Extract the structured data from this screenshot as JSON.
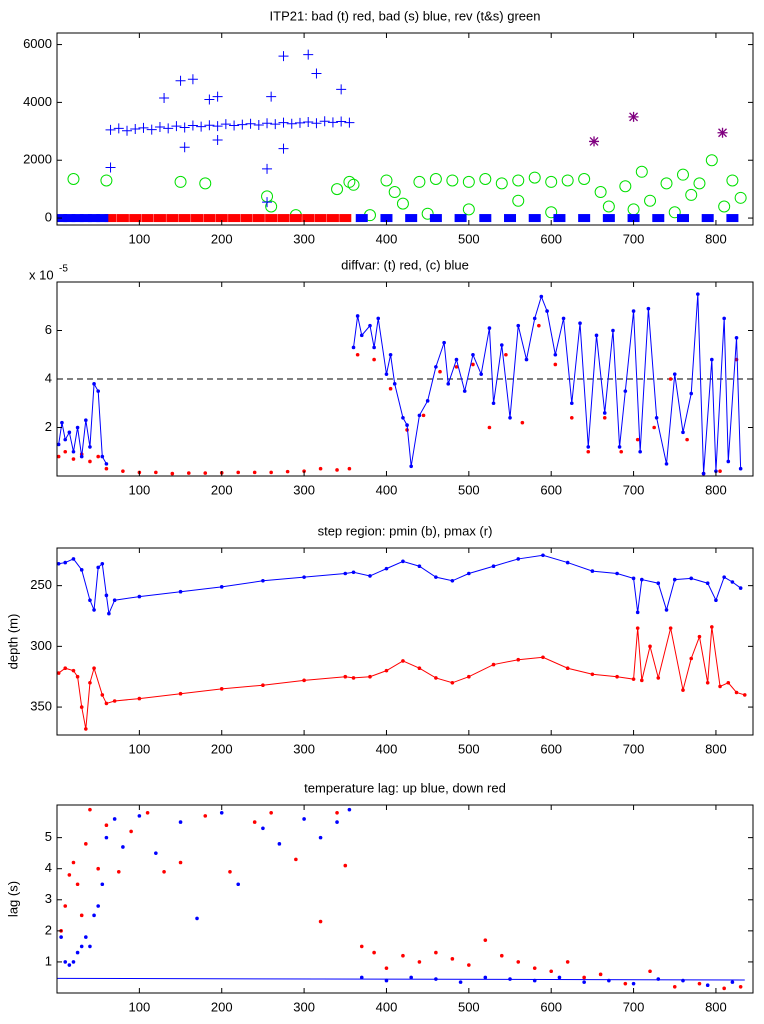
{
  "chart_data": [
    {
      "type": "scatter",
      "title": "ITP21: bad (t) red, bad (s) blue, rev (t&s) green",
      "xlim": [
        0,
        845
      ],
      "ylim": [
        -240,
        6400
      ],
      "xticks": [
        100,
        200,
        300,
        400,
        500,
        600,
        700,
        800
      ],
      "yticks": [
        0,
        2000,
        4000,
        6000
      ],
      "series": [
        {
          "color": "#00e000",
          "marker": "circle",
          "line": false,
          "x": [
            20,
            60,
            150,
            180,
            255,
            260,
            290,
            340,
            355,
            360,
            380,
            400,
            410,
            420,
            440,
            460,
            480,
            500,
            520,
            540,
            560,
            580,
            600,
            620,
            640,
            660,
            670,
            690,
            700,
            710,
            720,
            740,
            750,
            760,
            770,
            780,
            795,
            810,
            820,
            830,
            500,
            560,
            600,
            450
          ],
          "values": [
            1350,
            1300,
            1250,
            1200,
            750,
            400,
            100,
            1000,
            1250,
            1150,
            100,
            1300,
            900,
            500,
            1250,
            1350,
            1300,
            1250,
            1350,
            1200,
            1300,
            1400,
            1250,
            1300,
            1350,
            900,
            400,
            1100,
            300,
            1600,
            600,
            1200,
            200,
            1500,
            800,
            1200,
            2000,
            400,
            1300,
            700,
            300,
            600,
            200,
            150
          ]
        },
        {
          "color": "#0000ff",
          "marker": "plus",
          "line": false,
          "x": [
            65,
            75,
            85,
            95,
            105,
            115,
            125,
            135,
            145,
            155,
            165,
            175,
            185,
            195,
            205,
            215,
            225,
            235,
            245,
            255,
            265,
            275,
            285,
            295,
            305,
            315,
            325,
            335,
            345,
            355,
            130,
            150,
            165,
            185,
            195,
            260,
            275,
            305,
            315,
            345,
            155,
            195,
            275,
            255,
            65,
            255
          ],
          "values": [
            3050,
            3100,
            3020,
            3080,
            3120,
            3060,
            3150,
            3100,
            3180,
            3130,
            3200,
            3160,
            3210,
            3180,
            3250,
            3200,
            3230,
            3260,
            3220,
            3280,
            3250,
            3300,
            3260,
            3290,
            3320,
            3280,
            3350,
            3310,
            3340,
            3300,
            4150,
            4750,
            4800,
            4100,
            4200,
            4200,
            5600,
            5650,
            5000,
            4450,
            2450,
            2700,
            2400,
            1700,
            1750,
            550
          ]
        },
        {
          "color": "#ff0000",
          "marker": "square",
          "line": false,
          "x": [
            65,
            80,
            95,
            110,
            125,
            140,
            155,
            170,
            185,
            200,
            215,
            230,
            245,
            260,
            275,
            290,
            305,
            320,
            335,
            350
          ],
          "values": [
            0,
            0,
            0,
            0,
            0,
            0,
            0,
            0,
            0,
            0,
            0,
            0,
            0,
            0,
            0,
            0,
            0,
            0,
            0,
            0
          ]
        },
        {
          "color": "#0000ff",
          "marker": "square",
          "line": false,
          "x": [
            5,
            15,
            25,
            35,
            45,
            55,
            370,
            400,
            430,
            460,
            490,
            520,
            550,
            580,
            610,
            640,
            670,
            700,
            730,
            760,
            790,
            820
          ],
          "values": [
            0,
            0,
            0,
            0,
            0,
            0,
            0,
            0,
            0,
            0,
            0,
            0,
            0,
            0,
            0,
            0,
            0,
            0,
            0,
            0,
            0,
            0
          ]
        },
        {
          "color": "#800080",
          "marker": "star",
          "line": false,
          "x": [
            652,
            700,
            808
          ],
          "values": [
            2650,
            3500,
            2950
          ]
        }
      ]
    },
    {
      "type": "line",
      "title": "diffvar: (t) red, (c) blue",
      "y_multiplier": {
        "base": "x 10",
        "exponent": "-5"
      },
      "xlim": [
        0,
        845
      ],
      "ylim": [
        0,
        8
      ],
      "xticks": [
        100,
        200,
        300,
        400,
        500,
        600,
        700,
        800
      ],
      "yticks": [
        2,
        4,
        6
      ],
      "hline": 4,
      "series": [
        {
          "color": "#ff0000",
          "marker": "dot",
          "line": false,
          "x": [
            2,
            10,
            20,
            30,
            40,
            50,
            60,
            80,
            100,
            120,
            140,
            160,
            180,
            200,
            220,
            240,
            260,
            280,
            300,
            320,
            340,
            355,
            365,
            385,
            405,
            425,
            445,
            465,
            485,
            505,
            525,
            545,
            565,
            585,
            605,
            625,
            645,
            665,
            685,
            705,
            725,
            745,
            765,
            785,
            805,
            825
          ],
          "values": [
            0.8,
            1.0,
            0.7,
            0.9,
            0.6,
            0.8,
            0.3,
            0.2,
            0.15,
            0.15,
            0.1,
            0.12,
            0.12,
            0.13,
            0.15,
            0.15,
            0.15,
            0.18,
            0.2,
            0.3,
            0.25,
            0.3,
            5.0,
            4.8,
            3.6,
            1.9,
            2.5,
            4.3,
            4.5,
            4.6,
            2.0,
            5.0,
            2.2,
            6.2,
            4.6,
            2.4,
            1.0,
            2.4,
            1.0,
            1.5,
            2.0,
            4.0,
            1.5,
            0.1,
            0.2,
            4.8
          ]
        },
        {
          "color": "#0000ff",
          "marker": "dot",
          "line": true,
          "x": [
            2,
            6,
            10,
            15,
            20,
            25,
            30,
            35,
            40,
            45,
            50,
            55,
            60,
            200,
            360,
            365,
            370,
            380,
            385,
            390,
            400,
            405,
            410,
            420,
            425,
            430,
            440,
            450,
            460,
            470,
            475,
            485,
            495,
            505,
            515,
            525,
            530,
            540,
            550,
            560,
            570,
            580,
            588,
            595,
            605,
            615,
            625,
            635,
            645,
            655,
            665,
            675,
            683,
            690,
            700,
            708,
            718,
            728,
            740,
            750,
            760,
            770,
            778,
            785,
            795,
            800,
            810,
            815,
            825,
            830
          ],
          "values": [
            1.3,
            2.2,
            1.5,
            1.8,
            1.0,
            2.0,
            0.8,
            2.3,
            1.2,
            3.8,
            3.5,
            0.8,
            0.5,
            null,
            5.3,
            6.6,
            5.8,
            6.2,
            5.3,
            6.5,
            4.2,
            5.0,
            3.8,
            2.4,
            2.1,
            0.4,
            2.5,
            3.1,
            4.5,
            5.5,
            3.8,
            4.8,
            3.5,
            5.0,
            4.2,
            6.1,
            3.0,
            5.4,
            2.4,
            6.2,
            4.8,
            6.5,
            7.4,
            6.8,
            5.0,
            6.5,
            3.0,
            6.3,
            1.2,
            5.8,
            2.6,
            6.0,
            1.2,
            3.5,
            6.8,
            1.0,
            6.9,
            2.4,
            0.5,
            4.2,
            1.8,
            3.4,
            7.5,
            0.1,
            4.8,
            0.2,
            6.5,
            0.6,
            5.7,
            0.3
          ]
        }
      ]
    },
    {
      "type": "line",
      "title": "step region: pmin (b), pmax (r)",
      "ylabel": "depth (m)",
      "y_reversed": true,
      "xlim": [
        0,
        845
      ],
      "ylim": [
        219,
        373
      ],
      "xticks": [
        100,
        200,
        300,
        400,
        500,
        600,
        700,
        800
      ],
      "yticks": [
        250,
        300,
        350
      ],
      "series": [
        {
          "color": "#0000ff",
          "marker": "dot",
          "line": true,
          "x": [
            2,
            10,
            20,
            30,
            40,
            45,
            50,
            55,
            60,
            63,
            70,
            100,
            150,
            200,
            250,
            300,
            350,
            360,
            380,
            400,
            420,
            440,
            460,
            480,
            500,
            530,
            560,
            590,
            620,
            650,
            680,
            700,
            705,
            710,
            730,
            740,
            750,
            770,
            790,
            800,
            810,
            820,
            830
          ],
          "values": [
            232,
            231,
            228,
            237,
            262,
            270,
            235,
            232,
            258,
            273,
            262,
            259,
            255,
            251,
            246,
            243,
            240,
            239,
            242,
            236,
            230,
            234,
            243,
            246,
            240,
            234,
            228,
            225,
            231,
            238,
            240,
            244,
            272,
            245,
            248,
            270,
            245,
            244,
            248,
            262,
            243,
            247,
            252
          ]
        },
        {
          "color": "#ff0000",
          "marker": "dot",
          "line": true,
          "x": [
            2,
            10,
            20,
            25,
            30,
            35,
            40,
            45,
            55,
            60,
            70,
            100,
            150,
            200,
            250,
            300,
            350,
            360,
            380,
            400,
            420,
            440,
            460,
            480,
            500,
            530,
            560,
            590,
            620,
            650,
            680,
            700,
            705,
            710,
            720,
            730,
            745,
            760,
            770,
            780,
            790,
            795,
            805,
            815,
            825,
            835
          ],
          "values": [
            322,
            318,
            320,
            325,
            350,
            368,
            330,
            318,
            340,
            347,
            345,
            343,
            339,
            335,
            332,
            328,
            325,
            326,
            325,
            320,
            312,
            318,
            326,
            330,
            325,
            315,
            311,
            309,
            318,
            323,
            325,
            327,
            285,
            328,
            300,
            326,
            285,
            336,
            310,
            292,
            330,
            284,
            333,
            330,
            338,
            340
          ]
        }
      ]
    },
    {
      "type": "scatter",
      "title": "temperature lag: up blue, down red",
      "ylabel": "lag (s)",
      "xlim": [
        0,
        845
      ],
      "ylim": [
        0,
        6.05
      ],
      "xticks": [
        100,
        200,
        300,
        400,
        500,
        600,
        700,
        800
      ],
      "yticks": [
        1,
        2,
        3,
        4,
        5
      ],
      "series": [
        {
          "color": "#0000ff",
          "marker": "none",
          "line": true,
          "x": [
            0,
            835
          ],
          "values": [
            0.47,
            0.42
          ]
        },
        {
          "color": "#0000ff",
          "marker": "dot",
          "line": false,
          "x": [
            5,
            10,
            15,
            20,
            25,
            30,
            35,
            40,
            45,
            50,
            55,
            60,
            70,
            80,
            100,
            120,
            150,
            170,
            200,
            220,
            250,
            270,
            300,
            320,
            340,
            355,
            370,
            400,
            430,
            460,
            490,
            520,
            550,
            580,
            610,
            640,
            670,
            700,
            730,
            760,
            790,
            820
          ],
          "values": [
            1.8,
            1.0,
            0.9,
            1.0,
            1.3,
            1.5,
            1.8,
            1.5,
            2.5,
            2.8,
            3.5,
            5.0,
            5.6,
            4.7,
            5.7,
            4.5,
            5.5,
            2.4,
            5.8,
            3.5,
            5.3,
            4.8,
            5.6,
            5.0,
            5.5,
            5.9,
            0.5,
            0.4,
            0.5,
            0.45,
            0.35,
            0.5,
            0.45,
            0.4,
            0.5,
            0.35,
            0.4,
            0.3,
            0.45,
            0.4,
            0.25,
            0.35
          ]
        },
        {
          "color": "#ff0000",
          "marker": "dot",
          "line": false,
          "x": [
            5,
            10,
            15,
            20,
            25,
            30,
            35,
            40,
            50,
            60,
            75,
            90,
            110,
            130,
            150,
            180,
            210,
            240,
            260,
            290,
            320,
            340,
            350,
            370,
            385,
            400,
            420,
            440,
            460,
            480,
            500,
            520,
            540,
            560,
            580,
            600,
            620,
            640,
            660,
            690,
            720,
            750,
            780,
            810,
            830
          ],
          "values": [
            2.0,
            2.8,
            3.8,
            4.2,
            3.5,
            2.5,
            4.8,
            5.9,
            4.0,
            5.4,
            3.9,
            5.2,
            5.8,
            3.9,
            4.2,
            5.7,
            3.9,
            5.5,
            5.8,
            4.3,
            2.3,
            5.8,
            4.1,
            1.5,
            1.3,
            0.8,
            1.2,
            1.0,
            1.3,
            1.1,
            0.9,
            1.7,
            1.2,
            1.0,
            0.8,
            0.7,
            1.0,
            0.5,
            0.6,
            0.3,
            0.7,
            0.2,
            0.3,
            0.15,
            0.2
          ]
        }
      ]
    }
  ]
}
